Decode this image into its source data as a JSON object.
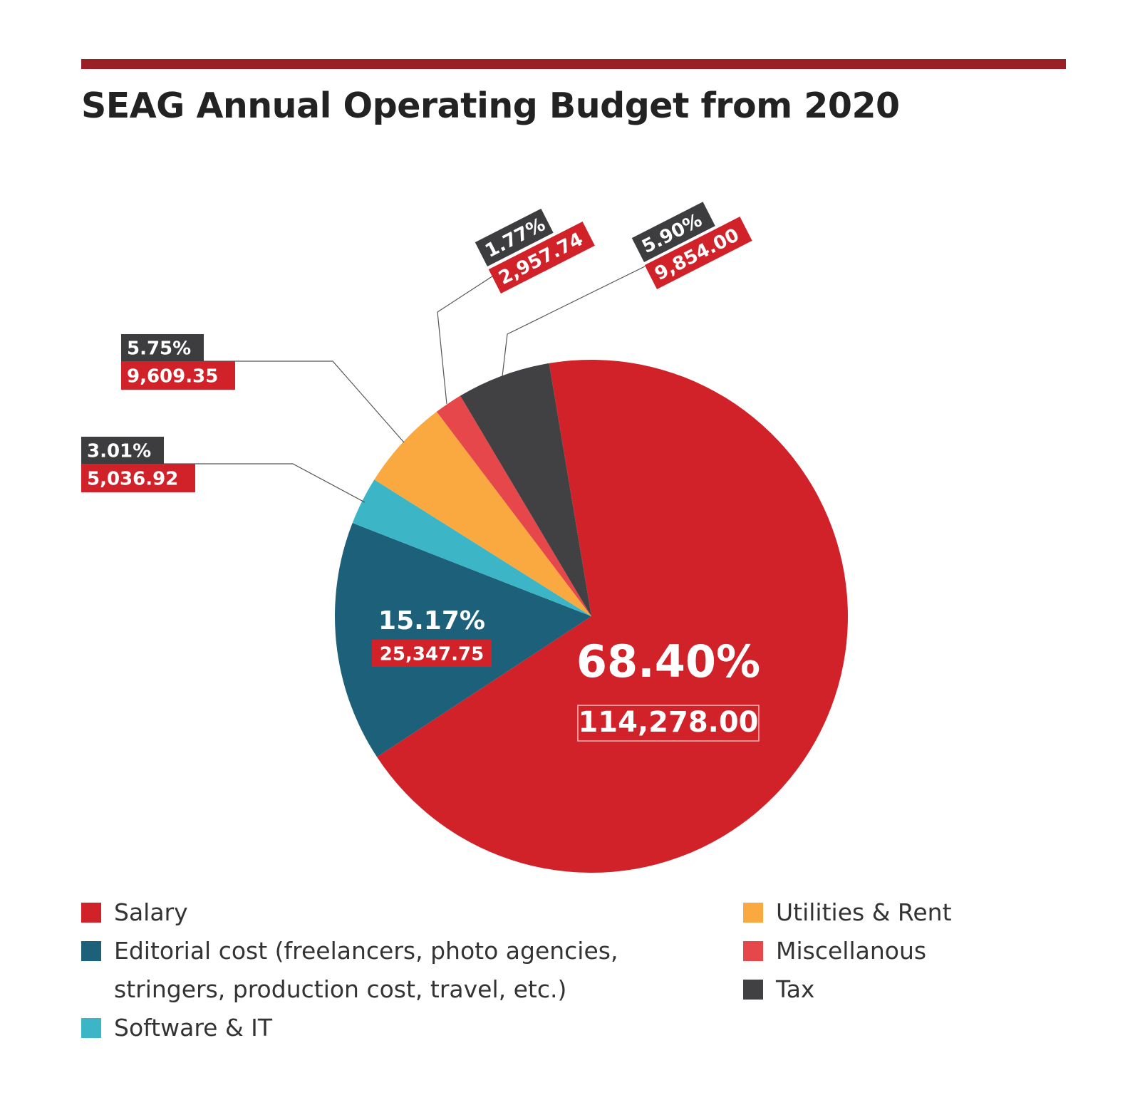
{
  "chart_data": {
    "type": "pie",
    "title": "SEAG Annual Operating Budget from 2020",
    "slices": [
      {
        "label": "Salary",
        "value": 114278.0,
        "value_label": "114,278.00",
        "percent_label": "68.40%",
        "color": "#d12229"
      },
      {
        "label": "Editorial cost (freelancers, photo agencies, stringers, production cost, travel, etc.)",
        "value": 25347.75,
        "value_label": "25,347.75",
        "percent_label": "15.17%",
        "color": "#1c6179"
      },
      {
        "label": "Software & IT",
        "value": 5036.92,
        "value_label": "5,036.92",
        "percent_label": "3.01%",
        "color": "#3cb6c6"
      },
      {
        "label": "Utilities & Rent",
        "value": 9609.35,
        "value_label": "9,609.35",
        "percent_label": "5.75%",
        "color": "#f9a940"
      },
      {
        "label": "Miscellanous",
        "value": 2957.74,
        "value_label": "2,957.74",
        "percent_label": "1.77%",
        "color": "#e5474a"
      },
      {
        "label": "Tax",
        "value": 9854.0,
        "value_label": "9,854.00",
        "percent_label": "5.90%",
        "color": "#414042"
      }
    ],
    "legend": {
      "left": [
        {
          "lines": [
            "Salary"
          ],
          "color": "#d12229"
        },
        {
          "lines": [
            "Editorial cost (freelancers, photo agencies,",
            "stringers, production cost, travel, etc.)"
          ],
          "color": "#1c6179"
        },
        {
          "lines": [
            "Software & IT"
          ],
          "color": "#3cb6c6"
        }
      ],
      "right": [
        {
          "lines": [
            "Utilities & Rent"
          ],
          "color": "#f9a940"
        },
        {
          "lines": [
            "Miscellanous"
          ],
          "color": "#e5474a"
        },
        {
          "lines": [
            "Tax"
          ],
          "color": "#414042"
        }
      ]
    },
    "colors": {
      "accent_rule": "#9b1f27",
      "label_dark_bg": "#3d3d3f",
      "label_red_bg": "#d12229",
      "label_text": "#ffffff"
    }
  }
}
